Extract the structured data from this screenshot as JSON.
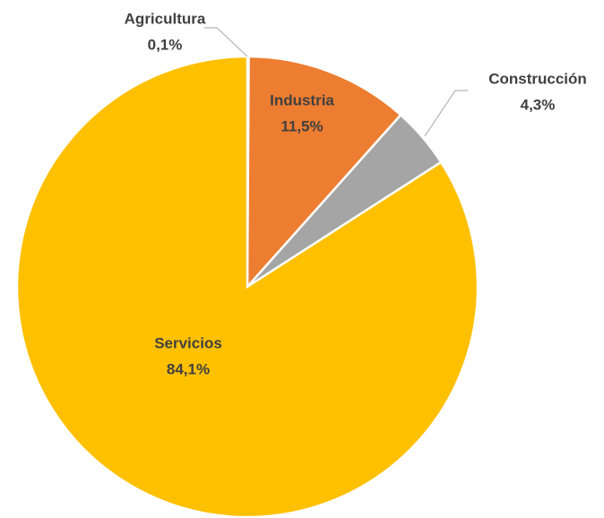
{
  "chart_data": {
    "type": "pie",
    "categories": [
      "Agricultura",
      "Industria",
      "Construcción",
      "Servicios"
    ],
    "values": [
      0.1,
      11.5,
      4.3,
      84.1
    ],
    "value_labels": [
      "0,1%",
      "11,5%",
      "4,3%",
      "84,1%"
    ],
    "colors": [
      "#5b9bd5",
      "#ed7d31",
      "#a5a5a5",
      "#ffc000"
    ]
  }
}
